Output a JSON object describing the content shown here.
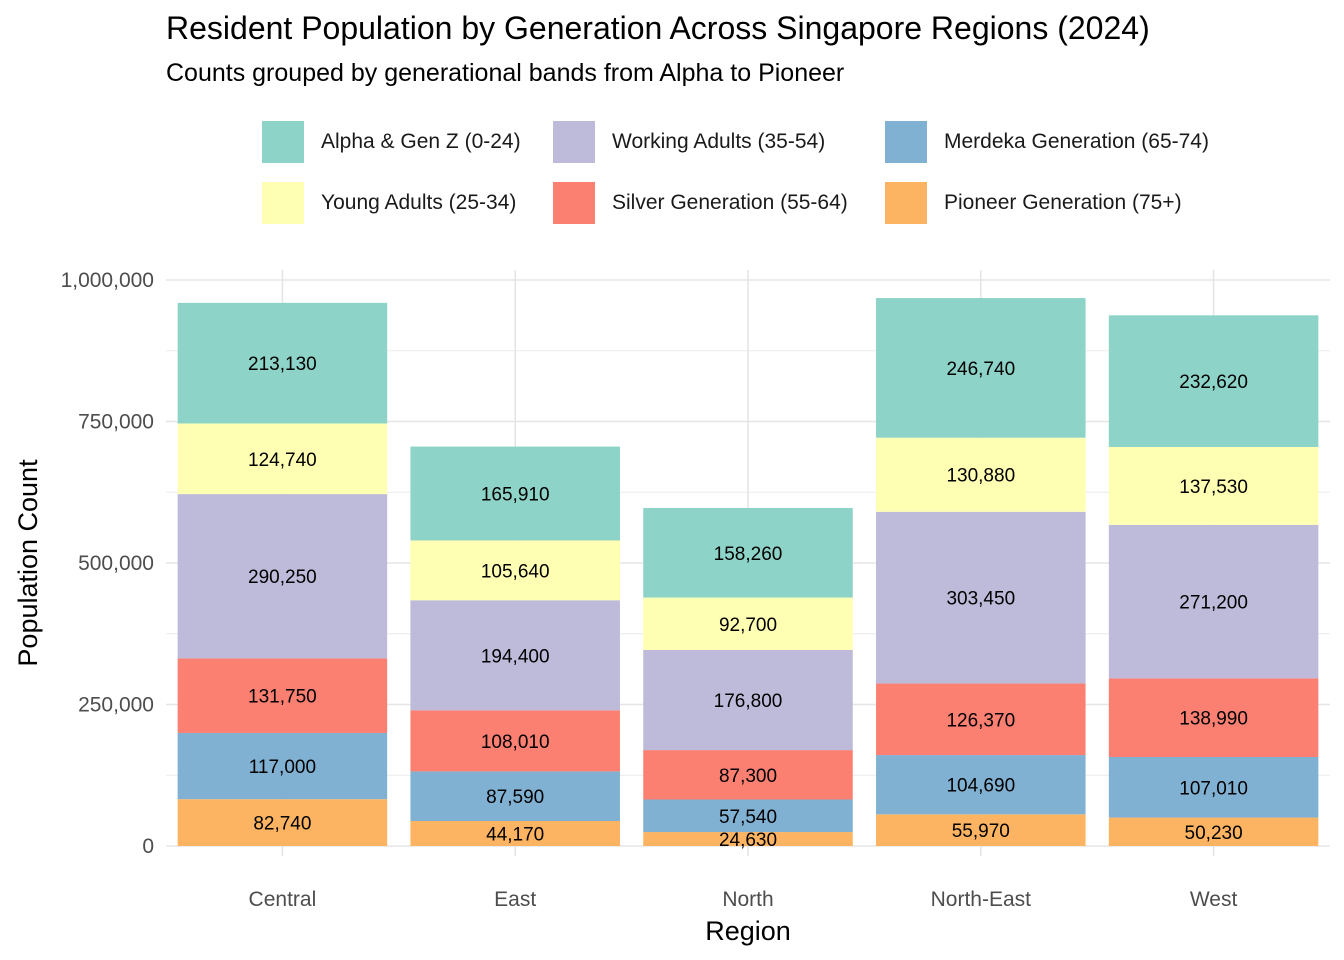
{
  "chart_data": {
    "type": "bar",
    "stacked": true,
    "title": "Resident Population by Generation Across Singapore Regions (2024)",
    "subtitle": "Counts grouped by generational bands from Alpha to Pioneer",
    "xlabel": "Region",
    "ylabel": "Population Count",
    "ylim": [
      0,
      1000000
    ],
    "yticks": [
      0,
      250000,
      500000,
      750000,
      1000000
    ],
    "ytick_labels": [
      "0",
      "250,000",
      "500,000",
      "750,000",
      "1,000,000"
    ],
    "grid": true,
    "legend_position": "top",
    "categories": [
      "Central",
      "East",
      "North",
      "North-East",
      "West"
    ],
    "series": [
      {
        "name": "Pioneer Generation (75+)",
        "color": "#FDB462",
        "values": [
          82740,
          44170,
          24630,
          55970,
          50230
        ],
        "labels": [
          "82,740",
          "44,170",
          "24,630",
          "55,970",
          "50,230"
        ]
      },
      {
        "name": "Merdeka Generation (65-74)",
        "color": "#80B1D3",
        "values": [
          117000,
          87590,
          57540,
          104690,
          107010
        ],
        "labels": [
          "117,000",
          "87,590",
          "57,540",
          "104,690",
          "107,010"
        ]
      },
      {
        "name": "Silver Generation (55-64)",
        "color": "#FB8072",
        "values": [
          131750,
          108010,
          87300,
          126370,
          138990
        ],
        "labels": [
          "131,750",
          "108,010",
          "87,300",
          "126,370",
          "138,990"
        ]
      },
      {
        "name": "Working Adults (35-54)",
        "color": "#BEBADA",
        "values": [
          290250,
          194400,
          176800,
          303450,
          271200
        ],
        "labels": [
          "290,250",
          "194,400",
          "176,800",
          "303,450",
          "271,200"
        ]
      },
      {
        "name": "Young Adults (25-34)",
        "color": "#FFFFB3",
        "values": [
          124740,
          105640,
          92700,
          130880,
          137530
        ],
        "labels": [
          "124,740",
          "105,640",
          "92,700",
          "130,880",
          "137,530"
        ]
      },
      {
        "name": "Alpha & Gen Z (0-24)",
        "color": "#8DD3C7",
        "values": [
          213130,
          165910,
          158260,
          246740,
          232620
        ],
        "labels": [
          "213,130",
          "165,910",
          "158,260",
          "246,740",
          "232,620"
        ]
      }
    ],
    "legend_order": [
      "Alpha & Gen Z (0-24)",
      "Young Adults (25-34)",
      "Working Adults (35-54)",
      "Silver Generation (55-64)",
      "Merdeka Generation (65-74)",
      "Pioneer Generation (75+)"
    ]
  }
}
